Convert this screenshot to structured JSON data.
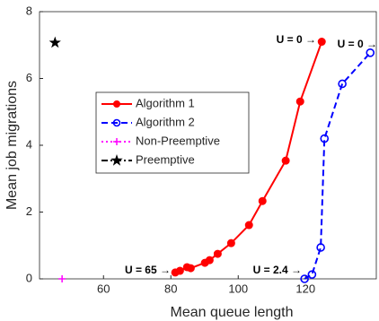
{
  "chart_data": {
    "type": "line",
    "xlabel": "Mean queue length",
    "ylabel": "Mean job migrations",
    "xlim": [
      41,
      141
    ],
    "ylim": [
      0,
      8
    ],
    "xticks": [
      60,
      80,
      100,
      120
    ],
    "yticks": [
      0,
      2,
      4,
      6,
      8
    ],
    "legend": "upper left",
    "series": [
      {
        "name": "Algorithm 1",
        "color": "#ff0000",
        "marker": "circle",
        "line": "solid",
        "x": [
          81.3,
          82.7,
          84.8,
          85.9,
          90.1,
          91.5,
          93.9,
          97.9,
          103.2,
          107.2,
          114.1,
          118.4,
          124.8
        ],
        "values": [
          0.19,
          0.24,
          0.35,
          0.32,
          0.48,
          0.56,
          0.75,
          1.07,
          1.61,
          2.33,
          3.54,
          5.31,
          7.1
        ]
      },
      {
        "name": "Algorithm 2",
        "color": "#0000ff",
        "marker": "open-circle",
        "line": "dashed",
        "x": [
          119.7,
          121.9,
          124.5,
          125.6,
          130.9,
          139.2
        ],
        "values": [
          0,
          0.13,
          0.94,
          4.2,
          5.84,
          6.77
        ]
      },
      {
        "name": "Non-Preemptive",
        "color": "#ff00ff",
        "marker": "plus",
        "line": "dotted",
        "x": [
          47.7
        ],
        "values": [
          0
        ]
      },
      {
        "name": "Preemptive",
        "color": "#000000",
        "marker": "star",
        "line": "dashdot",
        "x": [
          45.6
        ],
        "values": [
          7.07
        ]
      }
    ],
    "annotations": [
      "U = 0 →",
      "U = 0 →",
      "U = 65 →",
      "U = 2.4 →"
    ]
  }
}
